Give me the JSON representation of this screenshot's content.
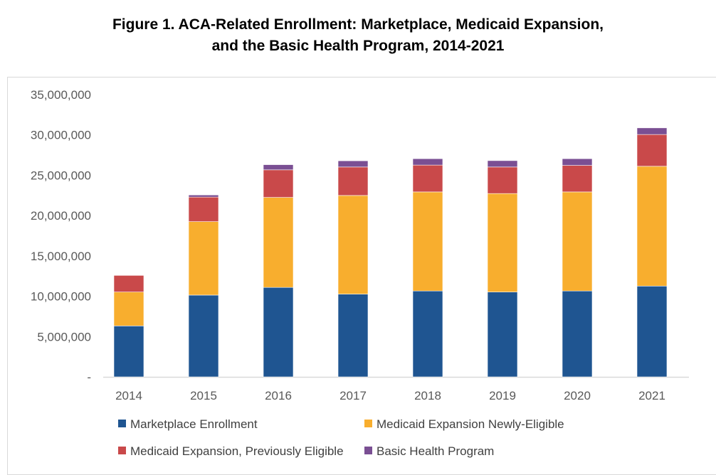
{
  "chart_data": {
    "type": "bar",
    "stacked": true,
    "title_line1": "Figure 1. ACA-Related Enrollment: Marketplace, Medicaid Expansion,",
    "title_line2": "and the Basic Health Program, 2014-2021",
    "xlabel": "",
    "ylabel": "",
    "ylim": [
      0,
      35000000
    ],
    "yticks": [
      0,
      5000000,
      10000000,
      15000000,
      20000000,
      25000000,
      30000000,
      35000000
    ],
    "ytick_labels": [
      "-",
      "5,000,000",
      "10,000,000",
      "15,000,000",
      "20,000,000",
      "25,000,000",
      "30,000,000",
      "35,000,000"
    ],
    "grid": false,
    "legend_placement": "bottom",
    "categories": [
      "2014",
      "2015",
      "2016",
      "2017",
      "2018",
      "2019",
      "2020",
      "2021"
    ],
    "series": [
      {
        "name": "Marketplace Enrollment",
        "color": "#1f5591",
        "values": [
          6320000,
          10140000,
          11090000,
          10260000,
          10650000,
          10520000,
          10650000,
          11260000
        ]
      },
      {
        "name": "Medicaid Expansion Newly-Eligible",
        "color": "#f8ae2e",
        "values": [
          4200000,
          9110000,
          11160000,
          12230000,
          12280000,
          12210000,
          12280000,
          14850000
        ]
      },
      {
        "name": "Medicaid Expansion, Previously Eligible",
        "color": "#c9494a",
        "values": [
          2060000,
          3040000,
          3420000,
          3530000,
          3330000,
          3290000,
          3290000,
          3940000
        ]
      },
      {
        "name": "Basic Health Program",
        "color": "#7a4f93",
        "values": [
          0,
          260000,
          640000,
          770000,
          790000,
          790000,
          830000,
          820000
        ]
      }
    ]
  }
}
